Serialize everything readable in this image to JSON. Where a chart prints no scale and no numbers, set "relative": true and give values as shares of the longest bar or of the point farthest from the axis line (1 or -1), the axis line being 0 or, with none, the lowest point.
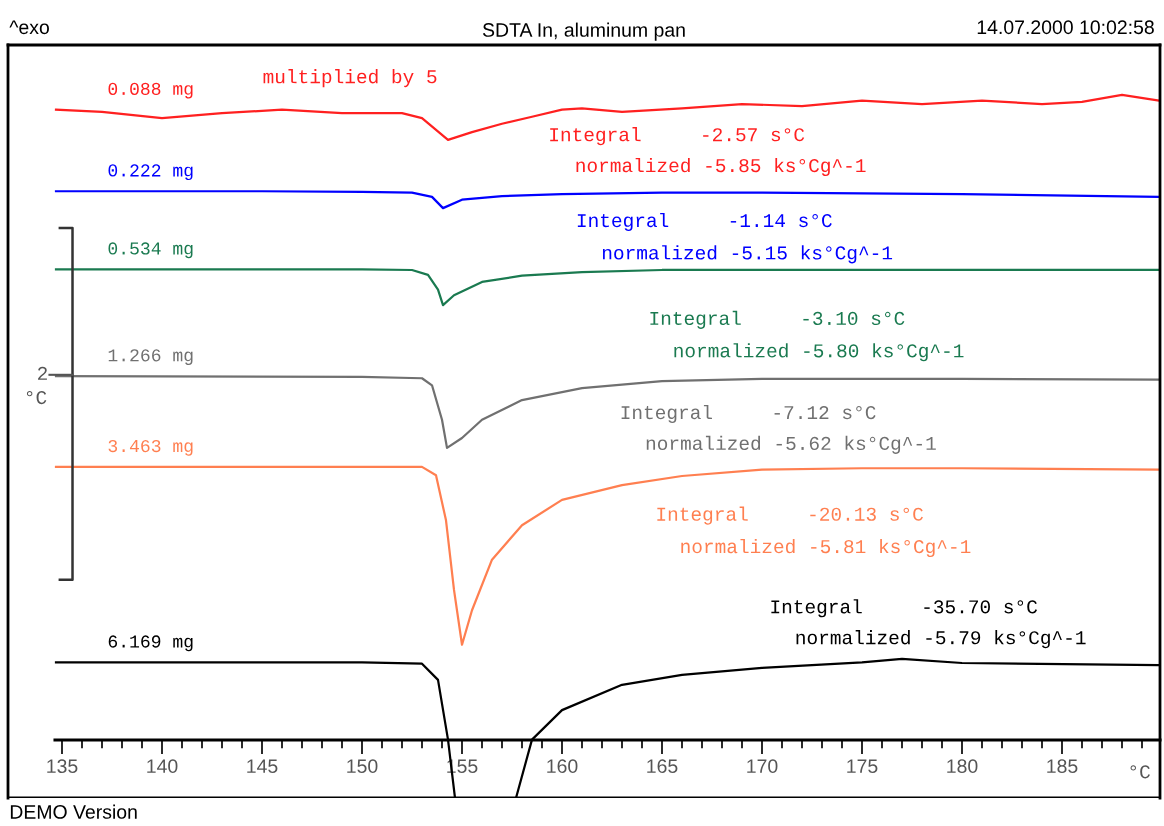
{
  "chart_data": {
    "type": "line",
    "relative": true,
    "title": "SDTA In, aluminum pan",
    "xlabel": "°C",
    "xlim": [
      132.3,
      189.9
    ],
    "xticks": [
      135,
      140,
      145,
      150,
      155,
      160,
      165,
      170,
      175,
      180,
      185
    ],
    "grid": false,
    "legend": false,
    "marker": "none",
    "line_style": "solid",
    "series": [
      {
        "name": "0.088 mg",
        "color": "#ff2020",
        "x": [
          134.7,
          137,
          140,
          143,
          146,
          149,
          152,
          153,
          154.3,
          155.5,
          157,
          158.5,
          160,
          161,
          163,
          166,
          169,
          172,
          175,
          178,
          181,
          184,
          186,
          188,
          189.8
        ],
        "values": [
          0.979,
          0.976,
          0.967,
          0.974,
          0.979,
          0.974,
          0.974,
          0.967,
          0.936,
          0.947,
          0.959,
          0.969,
          0.979,
          0.981,
          0.976,
          0.981,
          0.987,
          0.984,
          0.992,
          0.987,
          0.992,
          0.987,
          0.99,
          1.0,
          0.992
        ]
      },
      {
        "name": "0.222 mg",
        "color": "#0000ff",
        "x": [
          134.7,
          145,
          150,
          152.5,
          153.5,
          154.05,
          155,
          157,
          160,
          165,
          170,
          180,
          189.8
        ],
        "values": [
          0.863,
          0.863,
          0.862,
          0.861,
          0.855,
          0.839,
          0.851,
          0.856,
          0.859,
          0.861,
          0.861,
          0.859,
          0.855
        ]
      },
      {
        "name": "0.534 mg",
        "color": "#1a7a50",
        "x": [
          134.7,
          150,
          152.5,
          153.3,
          153.8,
          154.05,
          154.6,
          156,
          158,
          161,
          165,
          175,
          189.8
        ],
        "values": [
          0.752,
          0.752,
          0.751,
          0.744,
          0.723,
          0.701,
          0.715,
          0.734,
          0.743,
          0.748,
          0.751,
          0.751,
          0.751
        ]
      },
      {
        "name": "1.266 mg",
        "color": "#707070",
        "x": [
          134.7,
          150,
          153,
          153.5,
          154,
          154.25,
          155,
          156,
          158,
          161,
          165,
          170,
          180,
          189.8
        ],
        "values": [
          0.6,
          0.599,
          0.597,
          0.587,
          0.538,
          0.498,
          0.512,
          0.538,
          0.566,
          0.583,
          0.593,
          0.596,
          0.596,
          0.595
        ]
      },
      {
        "name": "3.463 mg",
        "color": "#ff7f50",
        "x": [
          134.7,
          150,
          153,
          153.7,
          154.2,
          154.6,
          155.0,
          155.5,
          156.5,
          158,
          160,
          163,
          166,
          170,
          175,
          180,
          189.8
        ],
        "values": [
          0.471,
          0.471,
          0.471,
          0.459,
          0.395,
          0.296,
          0.218,
          0.267,
          0.339,
          0.388,
          0.424,
          0.445,
          0.458,
          0.467,
          0.469,
          0.469,
          0.467
        ]
      },
      {
        "name": "6.169 mg",
        "color": "#000000",
        "x": [
          134.7,
          150,
          153,
          153.8,
          154.3,
          154.65,
          156,
          157.7,
          158.5,
          160,
          163,
          166,
          170,
          175,
          177,
          180,
          189.8
        ],
        "values": [
          0.193,
          0.193,
          0.191,
          0.168,
          0.083,
          0,
          null,
          0,
          0.083,
          0.125,
          0.161,
          0.175,
          0.185,
          0.193,
          0.198,
          0.192,
          0.189
        ]
      }
    ],
    "annotations": [
      "^exo",
      "14.07.2000 10:02:58",
      "DEMO Version",
      "2",
      "°C",
      "multiplied by 5",
      "Integral     -2.57 s°C",
      "normalized -5.85 ks°Cg^-1",
      "Integral     -1.14 s°C",
      "normalized -5.15 ks°Cg^-1",
      "Integral     -3.10 s°C",
      "normalized -5.80 ks°Cg^-1",
      "Integral     -7.12 s°C",
      "normalized -5.62 ks°Cg^-1",
      "Integral     -20.13 s°C",
      "normalized -5.81 ks°Cg^-1",
      "Integral     -35.70 s°C",
      "normalized -5.79 ks°Cg^-1"
    ]
  }
}
